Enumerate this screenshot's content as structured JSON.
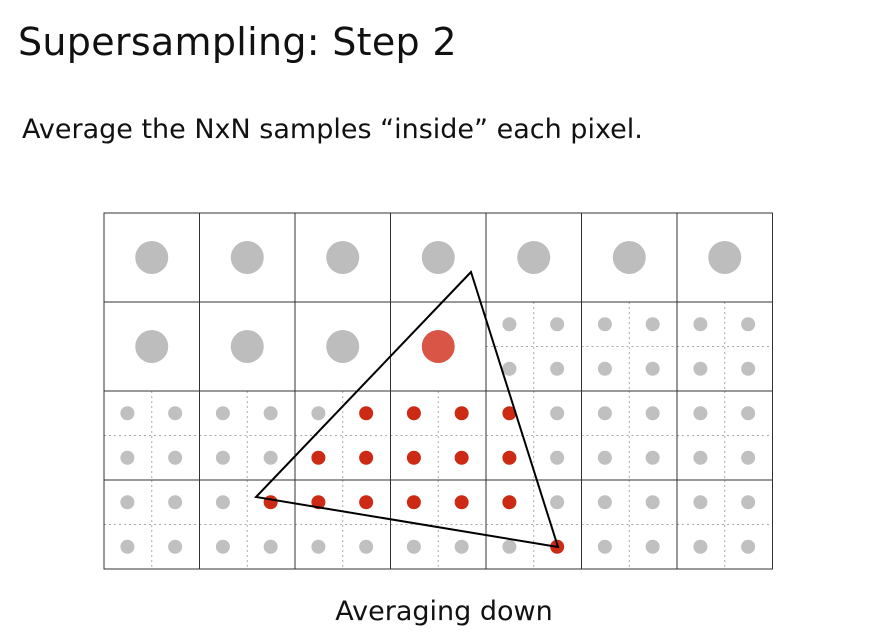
{
  "slide": {
    "title": "Supersampling: Step 2",
    "subtitle": "Average the NxN samples “inside” each pixel.",
    "caption": "Averaging down"
  },
  "diagram": {
    "pixel_grid": {
      "columns": 7,
      "rows": 4
    },
    "averaged_pixels": [
      {
        "row": 0,
        "col": 0,
        "color": "#bdbdbd"
      },
      {
        "row": 0,
        "col": 1,
        "color": "#bdbdbd"
      },
      {
        "row": 0,
        "col": 2,
        "color": "#bdbdbd"
      },
      {
        "row": 0,
        "col": 3,
        "color": "#bdbdbd"
      },
      {
        "row": 0,
        "col": 4,
        "color": "#bdbdbd"
      },
      {
        "row": 0,
        "col": 5,
        "color": "#bdbdbd"
      },
      {
        "row": 0,
        "col": 6,
        "color": "#bdbdbd"
      },
      {
        "row": 1,
        "col": 0,
        "color": "#bdbdbd"
      },
      {
        "row": 1,
        "col": 1,
        "color": "#bdbdbd"
      },
      {
        "row": 1,
        "col": 2,
        "color": "#bdbdbd"
      },
      {
        "row": 1,
        "col": 3,
        "color": "#d95546"
      }
    ],
    "supersampled_pixels": [
      {
        "row": 1,
        "col": 4,
        "samples": [
          "gray",
          "gray",
          "gray",
          "gray"
        ]
      },
      {
        "row": 1,
        "col": 5,
        "samples": [
          "gray",
          "gray",
          "gray",
          "gray"
        ]
      },
      {
        "row": 1,
        "col": 6,
        "samples": [
          "gray",
          "gray",
          "gray",
          "gray"
        ]
      },
      {
        "row": 2,
        "col": 0,
        "samples": [
          "gray",
          "gray",
          "gray",
          "gray"
        ]
      },
      {
        "row": 2,
        "col": 1,
        "samples": [
          "gray",
          "gray",
          "gray",
          "gray"
        ]
      },
      {
        "row": 2,
        "col": 2,
        "samples": [
          "gray",
          "red",
          "red",
          "red"
        ]
      },
      {
        "row": 2,
        "col": 3,
        "samples": [
          "red",
          "red",
          "red",
          "red"
        ]
      },
      {
        "row": 2,
        "col": 4,
        "samples": [
          "red",
          "gray",
          "red",
          "gray"
        ]
      },
      {
        "row": 2,
        "col": 5,
        "samples": [
          "gray",
          "gray",
          "gray",
          "gray"
        ]
      },
      {
        "row": 2,
        "col": 6,
        "samples": [
          "gray",
          "gray",
          "gray",
          "gray"
        ]
      },
      {
        "row": 3,
        "col": 0,
        "samples": [
          "gray",
          "gray",
          "gray",
          "gray"
        ]
      },
      {
        "row": 3,
        "col": 1,
        "samples": [
          "gray",
          "red",
          "gray",
          "gray"
        ]
      },
      {
        "row": 3,
        "col": 2,
        "samples": [
          "red",
          "red",
          "gray",
          "gray"
        ]
      },
      {
        "row": 3,
        "col": 3,
        "samples": [
          "red",
          "red",
          "gray",
          "gray"
        ]
      },
      {
        "row": 3,
        "col": 4,
        "samples": [
          "red",
          "gray",
          "gray",
          "red"
        ]
      },
      {
        "row": 3,
        "col": 5,
        "samples": [
          "gray",
          "gray",
          "gray",
          "gray"
        ]
      },
      {
        "row": 3,
        "col": 6,
        "samples": [
          "gray",
          "gray",
          "gray",
          "gray"
        ]
      }
    ],
    "colors": {
      "grid_line": "#333333",
      "sample_divider": "#aaaaaa",
      "sample_gray": "#c0c0c0",
      "sample_red": "#cc2a14",
      "triangle_stroke": "#000000"
    }
  }
}
